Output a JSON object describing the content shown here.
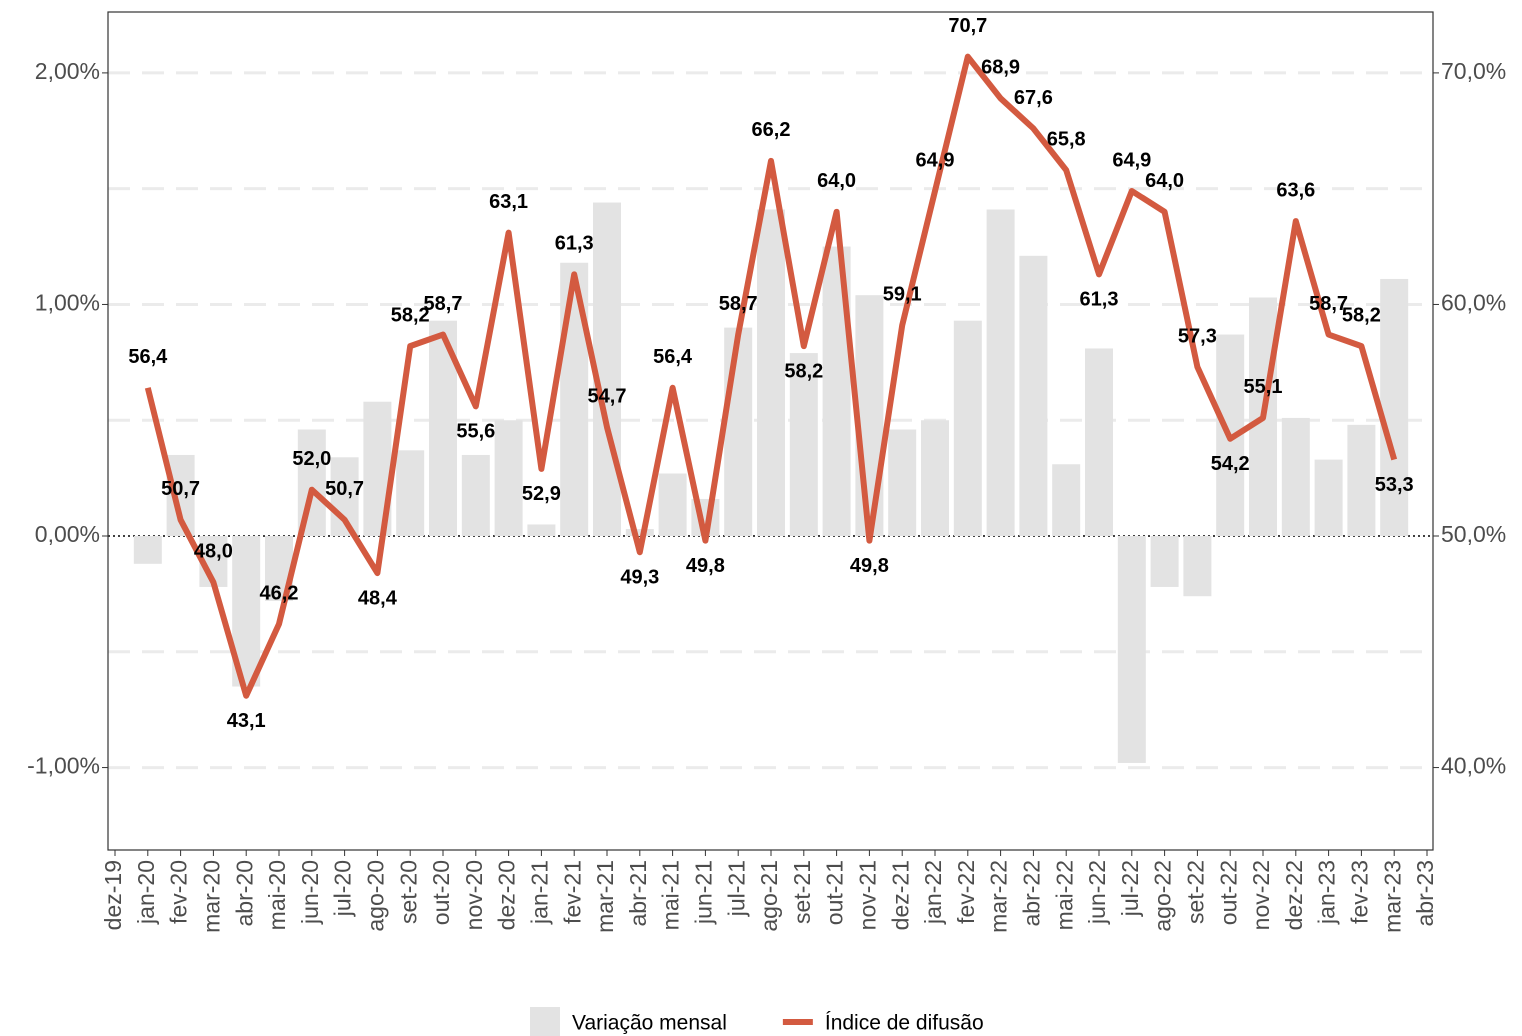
{
  "chart_data": {
    "type": "bar-line",
    "categories": [
      "dez-19",
      "jan-20",
      "fev-20",
      "mar-20",
      "abr-20",
      "mai-20",
      "jun-20",
      "jul-20",
      "ago-20",
      "set-20",
      "out-20",
      "nov-20",
      "dez-20",
      "jan-21",
      "fev-21",
      "mar-21",
      "abr-21",
      "mai-21",
      "jun-21",
      "jul-21",
      "ago-21",
      "set-21",
      "out-21",
      "nov-21",
      "dez-21",
      "jan-22",
      "fev-22",
      "mar-22",
      "abr-22",
      "mai-22",
      "jun-22",
      "jul-22",
      "ago-22",
      "set-22",
      "out-22",
      "nov-22",
      "dez-22",
      "jan-23",
      "fev-23",
      "mar-23",
      "abr-23"
    ],
    "series": [
      {
        "name": "Variação mensal",
        "type": "bar",
        "axis": "y",
        "color": "#e3e3e3",
        "values": [
          null,
          -0.12,
          0.35,
          -0.22,
          -0.65,
          -0.28,
          0.46,
          0.34,
          0.58,
          0.37,
          0.93,
          0.35,
          0.5,
          0.05,
          1.18,
          1.44,
          0.03,
          0.27,
          0.16,
          0.9,
          1.41,
          0.79,
          1.25,
          1.04,
          0.46,
          0.5,
          0.93,
          1.41,
          1.21,
          0.31,
          0.81,
          -0.98,
          -0.22,
          -0.26,
          0.87,
          1.03,
          0.51,
          0.33,
          0.48,
          1.11,
          null
        ]
      },
      {
        "name": "Índice de difusão",
        "type": "line",
        "axis": "y2",
        "color": "#d35a40",
        "values": [
          null,
          56.4,
          50.7,
          48.0,
          43.1,
          46.2,
          52.0,
          50.7,
          48.4,
          58.2,
          58.7,
          55.6,
          63.1,
          52.9,
          61.3,
          54.7,
          49.3,
          56.4,
          49.8,
          58.7,
          66.2,
          58.2,
          64.0,
          49.8,
          59.1,
          64.9,
          70.7,
          68.9,
          67.6,
          65.8,
          61.3,
          64.9,
          64.0,
          57.3,
          54.2,
          55.1,
          63.6,
          58.7,
          58.2,
          53.3,
          null
        ],
        "value_labels": [
          null,
          "56,4",
          "50,7",
          "48,0",
          "43,1",
          "46,2",
          "52,0",
          "50,7",
          "48,4",
          "58,2",
          "58,7",
          "55,6",
          "63,1",
          "52,9",
          "61,3",
          "54,7",
          "49,3",
          "56,4",
          "49,8",
          "58,7",
          "66,2",
          "58,2",
          "64,0",
          "49,8",
          "59,1",
          "64,9",
          "70,7",
          "68,9",
          "67,6",
          "65,8",
          "61,3",
          "64,9",
          "64,0",
          "57,3",
          "54,2",
          "55,1",
          "63,6",
          "58,7",
          "58,2",
          "53,3",
          null
        ]
      }
    ],
    "ylim": [
      -1.356,
      2.263
    ],
    "yticks": [
      {
        "value": -1,
        "label": "-1,00%"
      },
      {
        "value": 0,
        "label": "0,00%"
      },
      {
        "value": 1,
        "label": "1,00%"
      },
      {
        "value": 2,
        "label": "2,00%"
      }
    ],
    "y_minor_ticks": [
      -0.5,
      0.5,
      1.5
    ],
    "y2lim": [
      36.44,
      72.63
    ],
    "y2ticks": [
      {
        "value": 40,
        "label": "40,0%"
      },
      {
        "value": 50,
        "label": "50,0%"
      },
      {
        "value": 60,
        "label": "60,0%"
      },
      {
        "value": 70,
        "label": "70,0%"
      }
    ],
    "grid": true,
    "legend": "bottom"
  }
}
